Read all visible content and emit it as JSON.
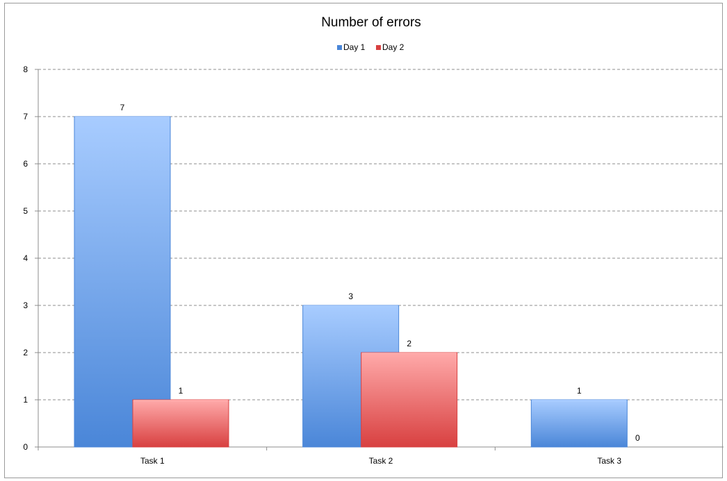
{
  "chart_data": {
    "type": "bar",
    "title": "Number of errors",
    "xlabel": "",
    "ylabel": "",
    "categories": [
      "Task 1",
      "Task 2",
      "Task 3"
    ],
    "series": [
      {
        "name": "Day 1",
        "values": [
          7,
          3,
          1
        ],
        "color": "#4a86d8",
        "color_light": "#a8ccff"
      },
      {
        "name": "Day 2",
        "values": [
          1,
          2,
          0
        ],
        "color": "#d84040",
        "color_light": "#ffaaaa"
      }
    ],
    "ylim": [
      0,
      8
    ],
    "yticks": [
      0,
      1,
      2,
      3,
      4,
      5,
      6,
      7,
      8
    ],
    "grid": true,
    "legend_position": "top"
  }
}
